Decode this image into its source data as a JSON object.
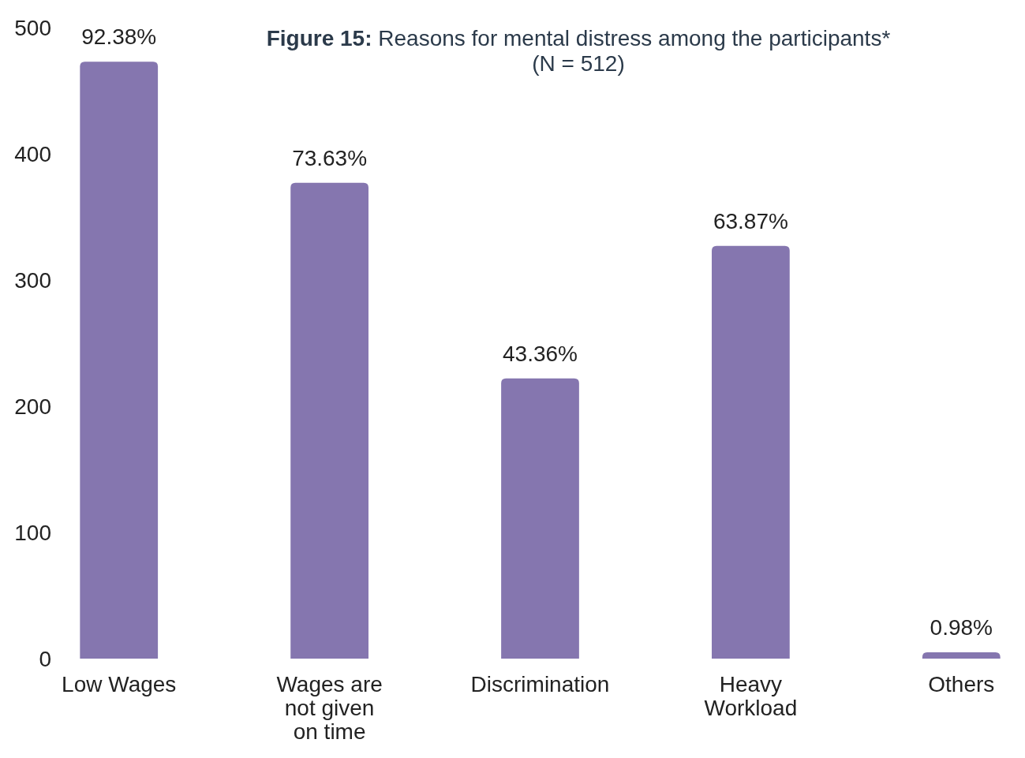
{
  "chart_data": {
    "type": "bar",
    "title": "Figure 15: Reasons for mental distress among the participants*",
    "subtitle": "(N = 512)",
    "categories": [
      "Low Wages",
      "Wages are not given on time",
      "Discrimination",
      "Heavy Workload",
      "Others"
    ],
    "values": [
      473,
      377,
      222,
      327,
      5
    ],
    "annotations": [
      {
        "text": "92.38%",
        "x": "Low Wages",
        "y": 473
      },
      {
        "text": "73.63%",
        "x": "Wages are not given on time",
        "y": 377
      },
      {
        "text": "43.36%",
        "x": "Discrimination",
        "y": 222
      },
      {
        "text": "63.87%",
        "x": "Heavy Workload",
        "y": 327
      },
      {
        "text": "0.98%",
        "x": "Others",
        "y": 5
      }
    ],
    "color": "#8576af",
    "ylim": [
      0,
      500
    ],
    "yticks": [
      0,
      100,
      200,
      300,
      400,
      500
    ],
    "grid": false
  }
}
